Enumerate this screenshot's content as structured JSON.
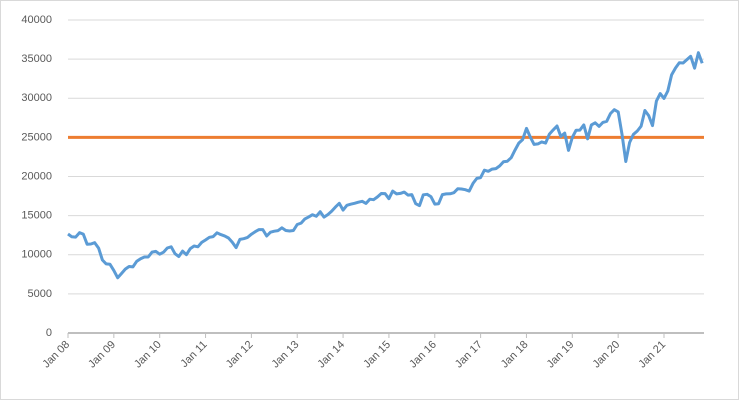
{
  "chart_data": {
    "type": "line",
    "categories": [
      "Jan 08",
      null,
      null,
      null,
      null,
      null,
      null,
      null,
      null,
      null,
      null,
      null,
      "Jan 09",
      null,
      null,
      null,
      null,
      null,
      null,
      null,
      null,
      null,
      null,
      null,
      "Jan 10",
      null,
      null,
      null,
      null,
      null,
      null,
      null,
      null,
      null,
      null,
      null,
      "Jan 11",
      null,
      null,
      null,
      null,
      null,
      null,
      null,
      null,
      null,
      null,
      null,
      "Jan 12",
      null,
      null,
      null,
      null,
      null,
      null,
      null,
      null,
      null,
      null,
      null,
      "Jan 13",
      null,
      null,
      null,
      null,
      null,
      null,
      null,
      null,
      null,
      null,
      null,
      "Jan 14",
      null,
      null,
      null,
      null,
      null,
      null,
      null,
      null,
      null,
      null,
      null,
      "Jan 15",
      null,
      null,
      null,
      null,
      null,
      null,
      null,
      null,
      null,
      null,
      null,
      "Jan 16",
      null,
      null,
      null,
      null,
      null,
      null,
      null,
      null,
      null,
      null,
      null,
      "Jan 17",
      null,
      null,
      null,
      null,
      null,
      null,
      null,
      null,
      null,
      null,
      null,
      "Jan 18",
      null,
      null,
      null,
      null,
      null,
      null,
      null,
      null,
      null,
      null,
      null,
      "Jan 19",
      null,
      null,
      null,
      null,
      null,
      null,
      null,
      null,
      null,
      null,
      null,
      "Jan 20",
      null,
      null,
      null,
      null,
      null,
      null,
      null,
      null,
      null,
      null,
      null,
      "Jan 21",
      null,
      null,
      null,
      null,
      null,
      null,
      null,
      null,
      null,
      null
    ],
    "series": [
      {
        "color": "#5b9bd5",
        "values": [
          12650,
          12300,
          12260,
          12820,
          12640,
          11350,
          11380,
          11540,
          10850,
          9330,
          8830,
          8780,
          8000,
          7060,
          7610,
          8170,
          8500,
          8450,
          9170,
          9500,
          9710,
          9710,
          10340,
          10430,
          10070,
          10330,
          10860,
          11010,
          10140,
          9770,
          10470,
          10010,
          10790,
          11120,
          11010,
          11580,
          11890,
          12230,
          12320,
          12810,
          12570,
          12410,
          12140,
          11610,
          10910,
          11960,
          12050,
          12220,
          12630,
          12950,
          13210,
          13210,
          12390,
          12880,
          13010,
          13090,
          13440,
          13100,
          13030,
          13100,
          13860,
          14050,
          14580,
          14840,
          15120,
          14910,
          15500,
          14810,
          15130,
          15550,
          16090,
          16580,
          15700,
          16320,
          16460,
          16580,
          16720,
          16830,
          16560,
          17100,
          17040,
          17390,
          17830,
          17820,
          17160,
          18130,
          17780,
          17840,
          18010,
          17620,
          17690,
          16530,
          16280,
          17660,
          17720,
          17430,
          16470,
          16520,
          17690,
          17770,
          17790,
          17930,
          18430,
          18400,
          18310,
          18140,
          19120,
          19760,
          19860,
          20810,
          20660,
          20940,
          21010,
          21350,
          21890,
          21950,
          22400,
          23380,
          24270,
          24720,
          26150,
          25030,
          24100,
          24160,
          24420,
          24270,
          25420,
          25960,
          26460,
          25120,
          25540,
          23330,
          24990,
          25920,
          25930,
          26590,
          24820,
          26600,
          26860,
          26400,
          26920,
          27050,
          28050,
          28540,
          28260,
          25410,
          21920,
          24350,
          25380,
          25810,
          26430,
          28430,
          27780,
          26500,
          29640,
          30600,
          29980,
          30930,
          32980,
          33870,
          34530,
          34500,
          34940,
          35360,
          33840,
          35820,
          34480
        ]
      }
    ],
    "reference_lines": [
      {
        "value": 25000,
        "color": "#ed7d31"
      }
    ],
    "ylim": [
      0,
      40000
    ],
    "yticks": [
      0,
      5000,
      10000,
      15000,
      20000,
      25000,
      30000,
      35000,
      40000
    ],
    "grid": true
  }
}
